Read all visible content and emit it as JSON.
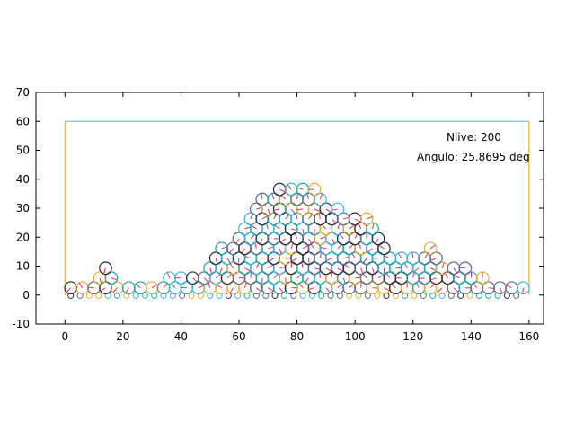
{
  "chart_data": {
    "type": "scatter",
    "title": "",
    "xlabel": "",
    "ylabel": "",
    "xlim": [
      -10,
      165
    ],
    "ylim": [
      -10,
      70
    ],
    "xticks": [
      0,
      20,
      40,
      60,
      80,
      100,
      120,
      140,
      160
    ],
    "yticks": [
      -10,
      0,
      10,
      20,
      30,
      40,
      50,
      60,
      70
    ],
    "grid": false,
    "annotations": [
      {
        "text": "Nlive: 200",
        "x": 140,
        "y": 55
      },
      {
        "text": "Angulo: 25.8695 deg",
        "x": 140,
        "y": 48
      }
    ],
    "container": {
      "x": [
        0,
        0,
        160,
        160
      ],
      "y": [
        0,
        60,
        60,
        0
      ],
      "color": "#66ccdd",
      "side_color": "#f0b030"
    },
    "particle_radius": 2,
    "particle_colors": [
      "#2a2a3a",
      "#f0b030",
      "#1aa9a9",
      "#39b6e0",
      "#5a6e8a"
    ],
    "pile_profile": [
      {
        "x": 0,
        "h": 2
      },
      {
        "x": 10,
        "h": 4
      },
      {
        "x": 14,
        "h": 9
      },
      {
        "x": 20,
        "h": 5
      },
      {
        "x": 30,
        "h": 5
      },
      {
        "x": 40,
        "h": 6
      },
      {
        "x": 46,
        "h": 8
      },
      {
        "x": 52,
        "h": 16
      },
      {
        "x": 58,
        "h": 20
      },
      {
        "x": 64,
        "h": 28
      },
      {
        "x": 70,
        "h": 35
      },
      {
        "x": 74,
        "h": 40
      },
      {
        "x": 78,
        "h": 38
      },
      {
        "x": 82,
        "h": 40
      },
      {
        "x": 86,
        "h": 36
      },
      {
        "x": 92,
        "h": 32
      },
      {
        "x": 98,
        "h": 28
      },
      {
        "x": 104,
        "h": 26
      },
      {
        "x": 110,
        "h": 22
      },
      {
        "x": 114,
        "h": 12
      },
      {
        "x": 120,
        "h": 14
      },
      {
        "x": 126,
        "h": 16
      },
      {
        "x": 132,
        "h": 12
      },
      {
        "x": 138,
        "h": 9
      },
      {
        "x": 144,
        "h": 6
      },
      {
        "x": 150,
        "h": 4
      },
      {
        "x": 156,
        "h": 5
      },
      {
        "x": 160,
        "h": 2
      }
    ]
  }
}
